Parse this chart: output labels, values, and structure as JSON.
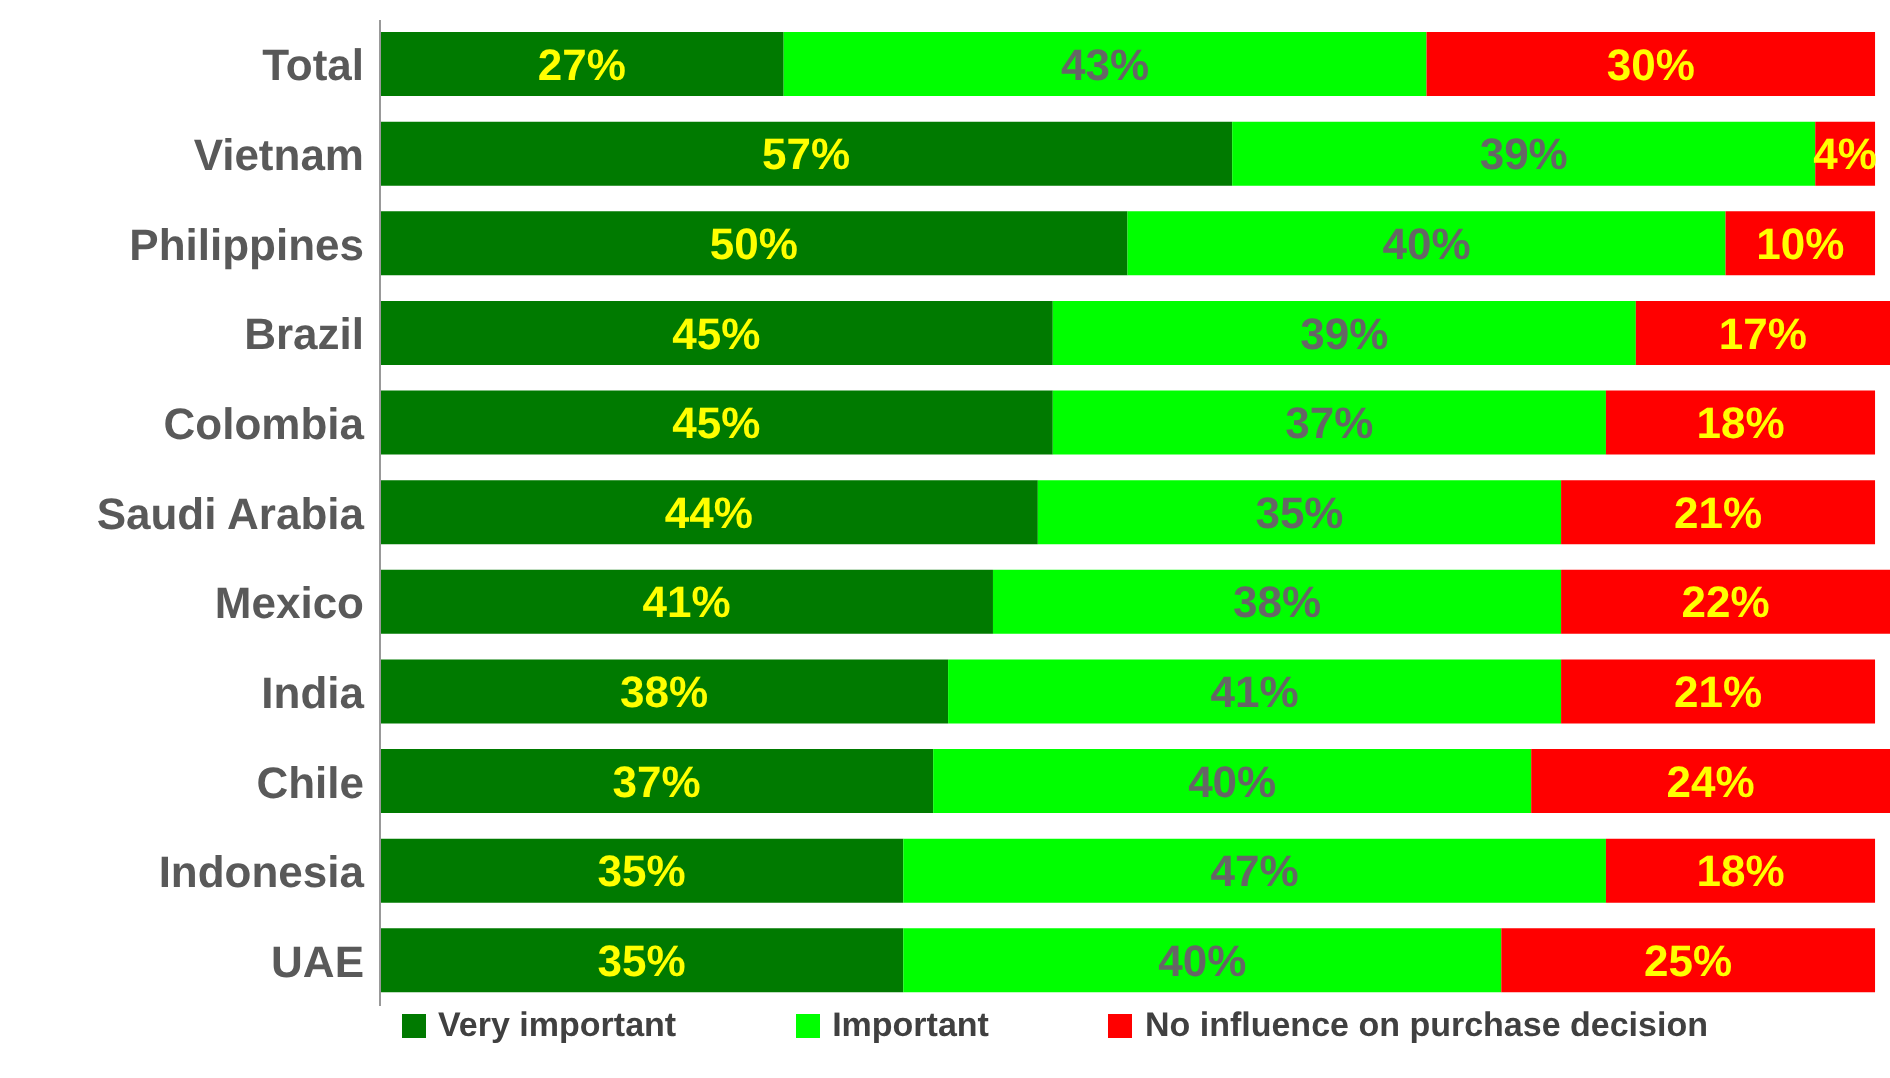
{
  "chart_data": {
    "type": "bar",
    "orientation": "horizontal",
    "stacked": true,
    "legend": "bottom",
    "grid": false,
    "categories": [
      "Total",
      "Vietnam",
      "Philippines",
      "Brazil",
      "Colombia",
      "Saudi Arabia",
      "Mexico",
      "India",
      "Chile",
      "Indonesia",
      "UAE"
    ],
    "series": [
      {
        "name": "Very important",
        "color": "#007a00",
        "values": [
          27,
          57,
          50,
          45,
          45,
          44,
          41,
          38,
          37,
          35,
          35
        ],
        "value_labels": [
          "27%",
          "57%",
          "50%",
          "45%",
          "45%",
          "44%",
          "41%",
          "38%",
          "37%",
          "35%",
          "35%"
        ]
      },
      {
        "name": "Important",
        "color": "#00ff00",
        "values": [
          43,
          39,
          40,
          39,
          37,
          35,
          38,
          41,
          40,
          47,
          40
        ],
        "value_labels": [
          "43%",
          "39%",
          "40%",
          "39%",
          "37%",
          "35%",
          "38%",
          "41%",
          "40%",
          "47%",
          "40%"
        ]
      },
      {
        "name": "No influence on purchase decision",
        "color": "#ff0000",
        "values": [
          30,
          4,
          10,
          17,
          18,
          21,
          22,
          21,
          24,
          18,
          25
        ],
        "value_labels": [
          "30%",
          "4%",
          "10%",
          "17%",
          "18%",
          "21%",
          "22%",
          "21%",
          "24%",
          "18%",
          "25%"
        ]
      }
    ]
  }
}
